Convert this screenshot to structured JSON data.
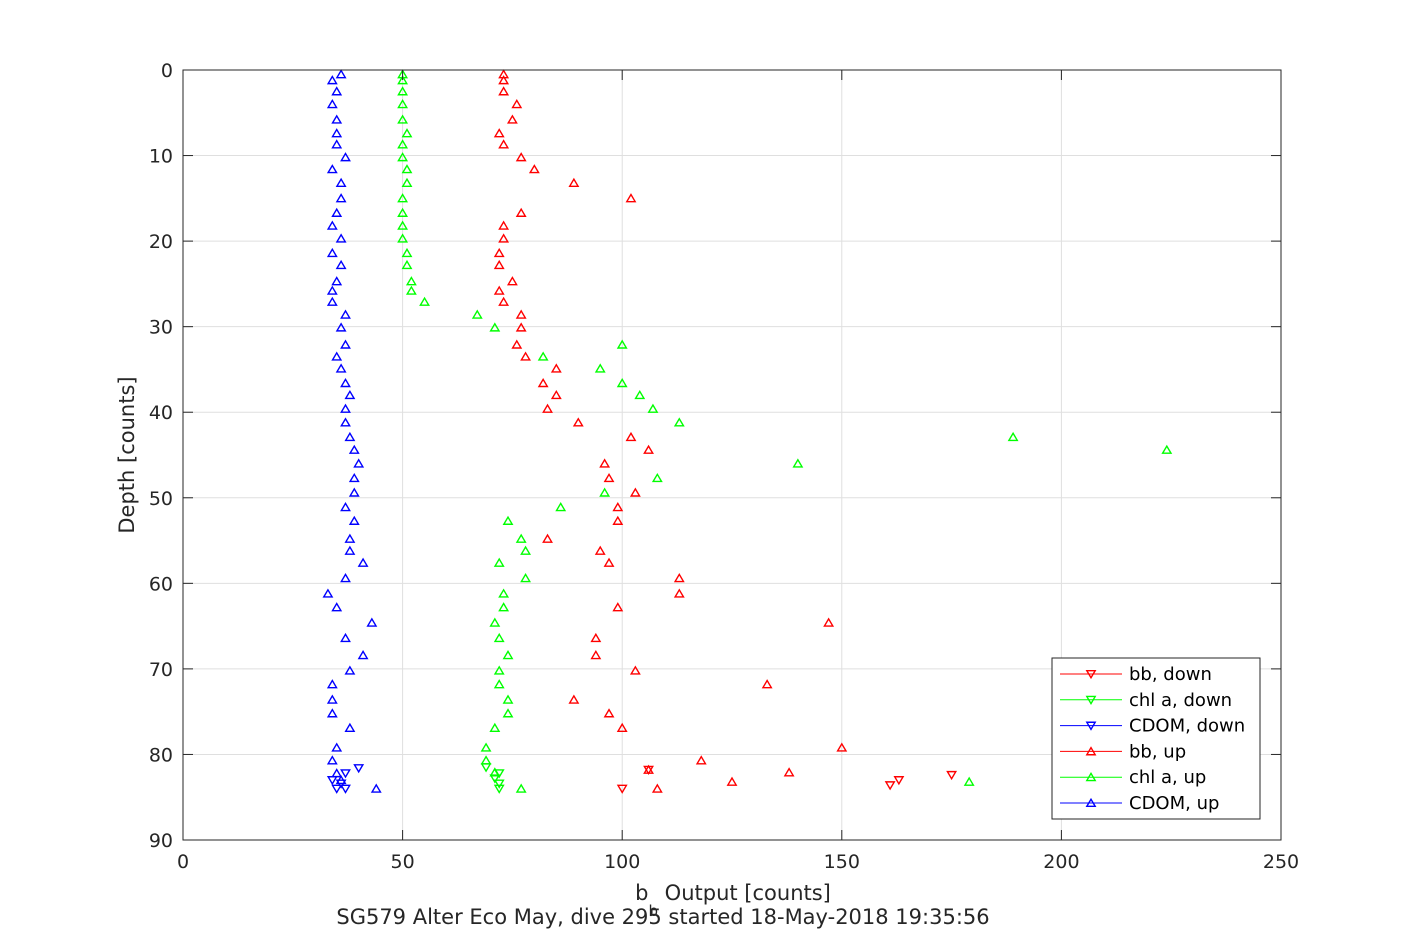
{
  "chart_data": {
    "type": "scatter",
    "xlabel_main": "b",
    "xlabel_sub": "b",
    "xlabel_rest": " Output [counts]",
    "ylabel": "Depth [counts]",
    "caption": "SG579 Alter Eco May, dive 295 started 18-May-2018 19:35:56",
    "xlim": [
      0,
      250
    ],
    "ylim": [
      0,
      90
    ],
    "y_reversed": true,
    "xticks": [
      0,
      50,
      100,
      150,
      200,
      250
    ],
    "yticks": [
      0,
      10,
      20,
      30,
      40,
      50,
      60,
      70,
      80,
      90
    ],
    "xtick_labels": [
      "0",
      "50",
      "100",
      "150",
      "200",
      "250"
    ],
    "ytick_labels": [
      "0",
      "10",
      "20",
      "30",
      "40",
      "50",
      "60",
      "70",
      "80",
      "90"
    ],
    "grid": true,
    "legend_position": "bottom-right",
    "series": [
      {
        "name": "bb, down",
        "color": "#ff0000",
        "marker": "triangle-down",
        "points": [
          [
            100,
            84.0
          ],
          [
            161,
            83.6
          ],
          [
            163,
            83.0
          ],
          [
            175,
            82.4
          ],
          [
            106,
            81.8
          ]
        ]
      },
      {
        "name": "chl a, down",
        "color": "#00ff00",
        "marker": "triangle-down",
        "points": [
          [
            72,
            84.0
          ],
          [
            72,
            83.4
          ],
          [
            71,
            82.8
          ],
          [
            72,
            82.2
          ],
          [
            69,
            81.5
          ]
        ]
      },
      {
        "name": "CDOM, down",
        "color": "#0000ff",
        "marker": "triangle-down",
        "points": [
          [
            35,
            84.0
          ],
          [
            37,
            84.0
          ],
          [
            36,
            83.4
          ],
          [
            34,
            83.0
          ],
          [
            37,
            82.2
          ],
          [
            40,
            81.6
          ]
        ]
      },
      {
        "name": "bb, up",
        "color": "#ff0000",
        "marker": "triangle-up",
        "points": [
          [
            73,
            0.5
          ],
          [
            73,
            1.2
          ],
          [
            73,
            2.5
          ],
          [
            76,
            4.0
          ],
          [
            75,
            5.8
          ],
          [
            72,
            7.4
          ],
          [
            73,
            8.7
          ],
          [
            77,
            10.2
          ],
          [
            80,
            11.6
          ],
          [
            89,
            13.2
          ],
          [
            102,
            15.0
          ],
          [
            77,
            16.7
          ],
          [
            73,
            18.2
          ],
          [
            73,
            19.7
          ],
          [
            72,
            21.4
          ],
          [
            72,
            22.8
          ],
          [
            75,
            24.7
          ],
          [
            72,
            25.8
          ],
          [
            73,
            27.1
          ],
          [
            77,
            28.6
          ],
          [
            77,
            30.1
          ],
          [
            76,
            32.1
          ],
          [
            78,
            33.5
          ],
          [
            85,
            34.9
          ],
          [
            82,
            36.6
          ],
          [
            85,
            38.0
          ],
          [
            83,
            39.6
          ],
          [
            90,
            41.2
          ],
          [
            102,
            42.9
          ],
          [
            106,
            44.4
          ],
          [
            96,
            46.0
          ],
          [
            97,
            47.7
          ],
          [
            103,
            49.4
          ],
          [
            99,
            51.1
          ],
          [
            99,
            52.7
          ],
          [
            83,
            54.8
          ],
          [
            95,
            56.2
          ],
          [
            97,
            57.6
          ],
          [
            113,
            59.4
          ],
          [
            113,
            61.2
          ],
          [
            99,
            62.8
          ],
          [
            147,
            64.6
          ],
          [
            94,
            66.4
          ],
          [
            94,
            68.4
          ],
          [
            103,
            70.2
          ],
          [
            133,
            71.8
          ],
          [
            89,
            73.6
          ],
          [
            97,
            75.2
          ],
          [
            100,
            76.9
          ],
          [
            150,
            79.2
          ],
          [
            118,
            80.7
          ],
          [
            106,
            81.8
          ],
          [
            138,
            82.1
          ],
          [
            125,
            83.2
          ],
          [
            108,
            84.0
          ]
        ]
      },
      {
        "name": "chl a, up",
        "color": "#00ff00",
        "marker": "triangle-up",
        "points": [
          [
            50,
            0.5
          ],
          [
            50,
            1.2
          ],
          [
            50,
            2.5
          ],
          [
            50,
            4.0
          ],
          [
            50,
            5.8
          ],
          [
            51,
            7.4
          ],
          [
            50,
            8.7
          ],
          [
            50,
            10.2
          ],
          [
            51,
            11.6
          ],
          [
            51,
            13.2
          ],
          [
            50,
            15.0
          ],
          [
            50,
            16.7
          ],
          [
            50,
            18.2
          ],
          [
            50,
            19.7
          ],
          [
            51,
            21.4
          ],
          [
            51,
            22.8
          ],
          [
            52,
            24.7
          ],
          [
            52,
            25.8
          ],
          [
            55,
            27.1
          ],
          [
            67,
            28.6
          ],
          [
            71,
            30.1
          ],
          [
            100,
            32.1
          ],
          [
            82,
            33.5
          ],
          [
            95,
            34.9
          ],
          [
            100,
            36.6
          ],
          [
            104,
            38.0
          ],
          [
            107,
            39.6
          ],
          [
            113,
            41.2
          ],
          [
            189,
            42.9
          ],
          [
            224,
            44.4
          ],
          [
            140,
            46.0
          ],
          [
            108,
            47.7
          ],
          [
            96,
            49.4
          ],
          [
            86,
            51.1
          ],
          [
            74,
            52.7
          ],
          [
            77,
            54.8
          ],
          [
            78,
            56.2
          ],
          [
            72,
            57.6
          ],
          [
            78,
            59.4
          ],
          [
            73,
            61.2
          ],
          [
            73,
            62.8
          ],
          [
            71,
            64.6
          ],
          [
            72,
            66.4
          ],
          [
            74,
            68.4
          ],
          [
            72,
            70.2
          ],
          [
            72,
            71.8
          ],
          [
            74,
            73.6
          ],
          [
            74,
            75.2
          ],
          [
            71,
            76.9
          ],
          [
            69,
            79.2
          ],
          [
            69,
            80.7
          ],
          [
            71,
            82.1
          ],
          [
            179,
            83.2
          ],
          [
            77,
            84.0
          ]
        ]
      },
      {
        "name": "CDOM, up",
        "color": "#0000ff",
        "marker": "triangle-up",
        "points": [
          [
            36,
            0.5
          ],
          [
            34,
            1.2
          ],
          [
            35,
            2.5
          ],
          [
            34,
            4.0
          ],
          [
            35,
            5.8
          ],
          [
            35,
            7.4
          ],
          [
            35,
            8.7
          ],
          [
            37,
            10.2
          ],
          [
            34,
            11.6
          ],
          [
            36,
            13.2
          ],
          [
            36,
            15.0
          ],
          [
            35,
            16.7
          ],
          [
            34,
            18.2
          ],
          [
            36,
            19.7
          ],
          [
            34,
            21.4
          ],
          [
            36,
            22.8
          ],
          [
            35,
            24.7
          ],
          [
            34,
            25.8
          ],
          [
            34,
            27.1
          ],
          [
            37,
            28.6
          ],
          [
            36,
            30.1
          ],
          [
            37,
            32.1
          ],
          [
            35,
            33.5
          ],
          [
            36,
            34.9
          ],
          [
            37,
            36.6
          ],
          [
            38,
            38.0
          ],
          [
            37,
            39.6
          ],
          [
            37,
            41.2
          ],
          [
            38,
            42.9
          ],
          [
            39,
            44.4
          ],
          [
            40,
            46.0
          ],
          [
            39,
            47.7
          ],
          [
            39,
            49.4
          ],
          [
            37,
            51.1
          ],
          [
            39,
            52.7
          ],
          [
            38,
            54.8
          ],
          [
            38,
            56.2
          ],
          [
            41,
            57.6
          ],
          [
            37,
            59.4
          ],
          [
            33,
            61.2
          ],
          [
            35,
            62.8
          ],
          [
            43,
            64.6
          ],
          [
            37,
            66.4
          ],
          [
            41,
            68.4
          ],
          [
            38,
            70.2
          ],
          [
            34,
            71.8
          ],
          [
            34,
            73.6
          ],
          [
            34,
            75.2
          ],
          [
            38,
            76.9
          ],
          [
            35,
            79.2
          ],
          [
            34,
            80.7
          ],
          [
            35,
            82.2
          ],
          [
            36,
            83.0
          ],
          [
            44,
            84.0
          ]
        ]
      }
    ]
  }
}
